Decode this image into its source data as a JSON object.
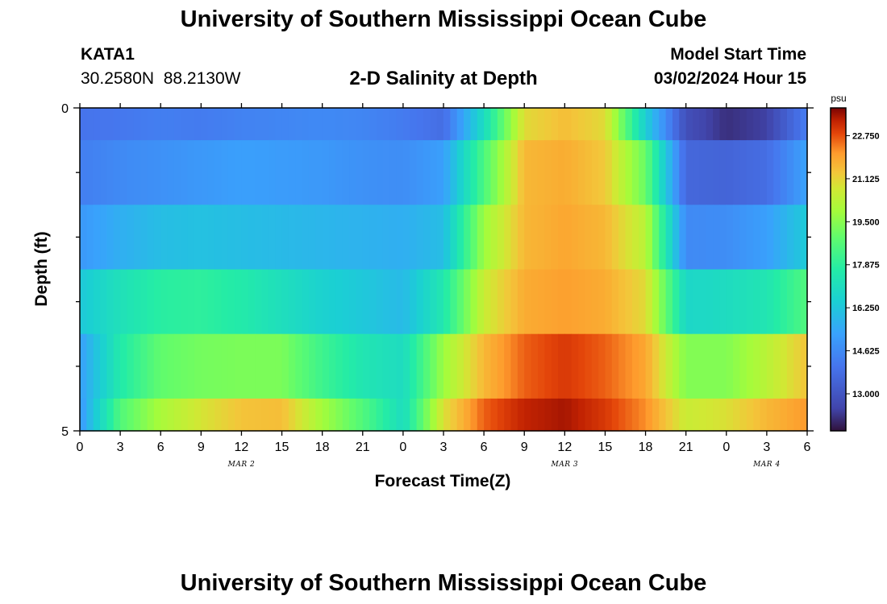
{
  "header": {
    "title": "University of Southern Mississippi Ocean Cube",
    "station_id": "KATA1",
    "station_coords": "30.2580N  88.2130W",
    "plot_title": "2-D Salinity at Depth",
    "start_label": "Model Start Time",
    "start_value": "03/02/2024 Hour 15"
  },
  "footer": {
    "title": "University of Southern Mississippi Ocean Cube"
  },
  "chart_data": {
    "type": "heatmap",
    "title": "2-D Salinity at Depth",
    "xlabel": "Forecast Time(Z)",
    "ylabel": "Depth (ft)",
    "x_ticks": [
      "0",
      "3",
      "6",
      "9",
      "12",
      "15",
      "18",
      "21",
      "0",
      "3",
      "6",
      "9",
      "12",
      "15",
      "18",
      "21",
      "0",
      "3",
      "6"
    ],
    "x_hours": [
      0,
      3,
      6,
      9,
      12,
      15,
      18,
      21,
      24,
      27,
      30,
      33,
      36,
      39,
      42,
      45,
      48,
      51,
      54
    ],
    "date_labels": [
      {
        "label": "MAR 2",
        "hour": 12
      },
      {
        "label": "MAR 3",
        "hour": 36
      },
      {
        "label": "MAR 4",
        "hour": 51
      }
    ],
    "xlim": [
      0,
      54
    ],
    "y_tick_labels": [
      "0",
      "5"
    ],
    "ylim": [
      0,
      5
    ],
    "depth_layers_ft": [
      0.25,
      1.0,
      2.0,
      3.0,
      4.0,
      4.75
    ],
    "layer_bounds_ft": [
      0,
      0.5,
      1.5,
      2.5,
      3.5,
      4.5,
      5
    ],
    "hours": [
      0,
      3,
      6,
      9,
      12,
      15,
      18,
      21,
      24,
      27,
      30,
      33,
      36,
      39,
      42,
      45,
      48,
      51,
      54
    ],
    "values_psu": [
      [
        14.0,
        14.1,
        14.3,
        14.2,
        14.4,
        14.5,
        14.6,
        14.5,
        14.2,
        13.8,
        17.0,
        21.0,
        21.5,
        21.0,
        16.5,
        12.8,
        12.1,
        12.4,
        14.3
      ],
      [
        14.3,
        14.6,
        14.8,
        15.0,
        15.2,
        15.1,
        15.0,
        14.8,
        14.7,
        15.2,
        18.5,
        21.6,
        21.8,
        21.3,
        19.0,
        13.6,
        13.5,
        13.8,
        15.3
      ],
      [
        15.0,
        15.6,
        16.0,
        16.1,
        16.0,
        15.9,
        15.8,
        15.7,
        15.6,
        16.0,
        19.8,
        21.6,
        21.9,
        21.6,
        20.3,
        14.6,
        14.7,
        15.2,
        16.4
      ],
      [
        16.3,
        17.2,
        17.8,
        17.9,
        17.6,
        17.1,
        16.6,
        16.3,
        15.9,
        17.5,
        20.6,
        21.8,
        22.0,
        21.8,
        21.0,
        16.8,
        17.0,
        17.4,
        18.6
      ],
      [
        15.2,
        17.6,
        18.9,
        19.2,
        19.3,
        19.3,
        18.2,
        17.4,
        17.0,
        19.8,
        21.6,
        22.6,
        23.0,
        22.6,
        21.9,
        19.4,
        19.4,
        20.3,
        21.4
      ],
      [
        15.0,
        18.6,
        20.0,
        20.8,
        21.4,
        21.5,
        19.9,
        18.6,
        17.0,
        20.9,
        22.6,
        23.3,
        23.5,
        23.0,
        22.2,
        20.6,
        20.9,
        21.6,
        22.1
      ]
    ],
    "colorbar": {
      "unit": "psu",
      "min": 11.6,
      "max": 23.8,
      "tick_values": [
        13.0,
        14.625,
        16.25,
        17.875,
        19.5,
        21.125,
        22.75
      ],
      "tick_labels": [
        "13.000",
        "14.625",
        "16.250",
        "17.875",
        "19.500",
        "21.125",
        "22.750"
      ]
    }
  }
}
